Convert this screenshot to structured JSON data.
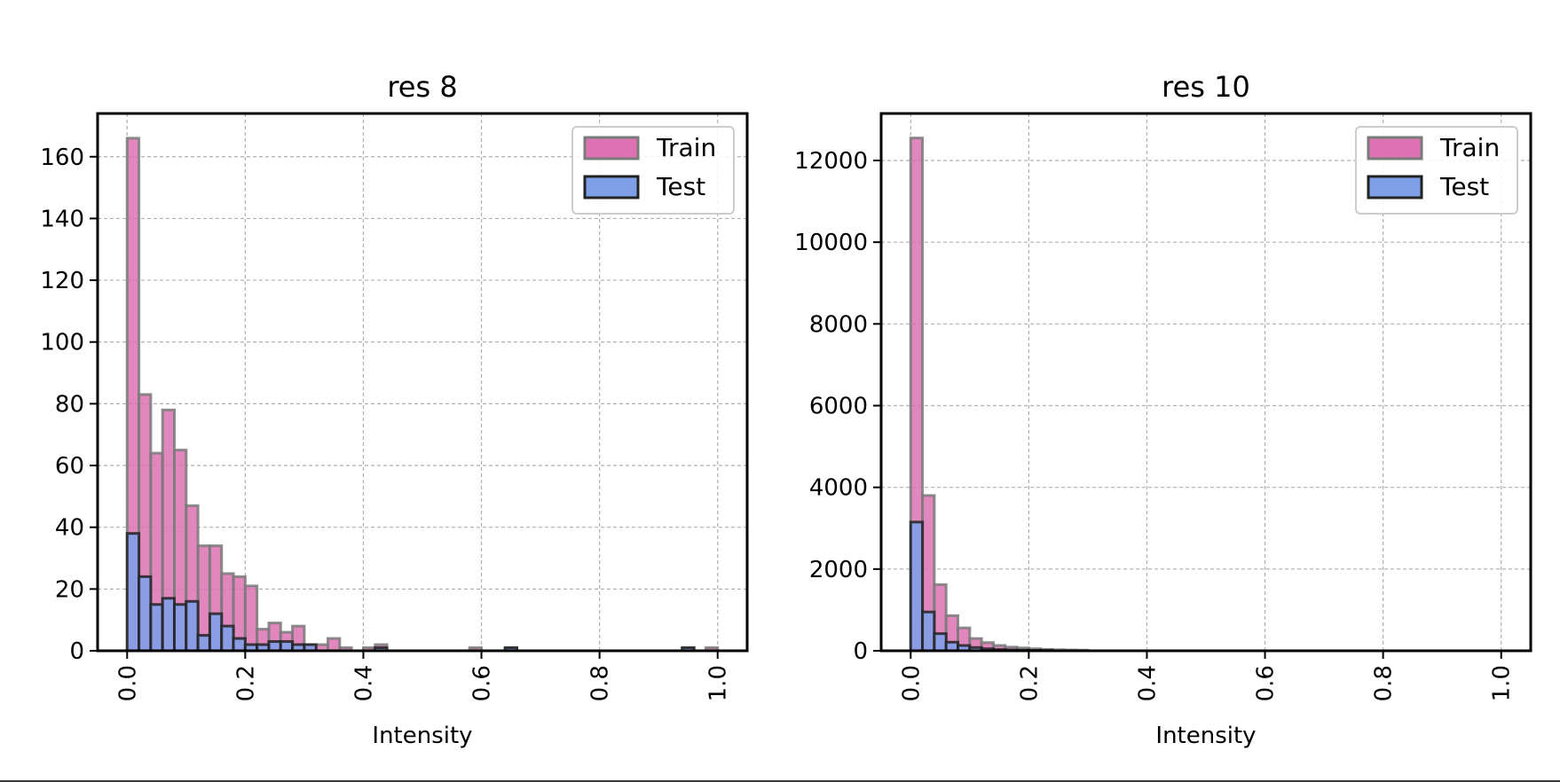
{
  "chart_data": [
    {
      "type": "bar",
      "title": "res 8",
      "xlabel": "Intensity",
      "ylabel": "",
      "xlim": [
        -0.05,
        1.05
      ],
      "ylim": [
        0,
        174
      ],
      "xticks": [
        0.0,
        0.2,
        0.4,
        0.6,
        0.8,
        1.0
      ],
      "xtick_labels": [
        "0.0",
        "0.2",
        "0.4",
        "0.6",
        "0.8",
        "1.0"
      ],
      "yticks": [
        0,
        20,
        40,
        60,
        80,
        100,
        120,
        140,
        160
      ],
      "ytick_labels": [
        "0",
        "20",
        "40",
        "60",
        "80",
        "100",
        "120",
        "140",
        "160"
      ],
      "grid": true,
      "legend": "top-right",
      "bin_width": 0.02,
      "series": [
        {
          "name": "Train",
          "color": "#dd71b3",
          "edge": "#7a7a7a",
          "bins": [
            [
              0.0,
              166
            ],
            [
              0.02,
              83
            ],
            [
              0.04,
              64
            ],
            [
              0.06,
              78
            ],
            [
              0.08,
              65
            ],
            [
              0.1,
              47
            ],
            [
              0.12,
              34
            ],
            [
              0.14,
              34
            ],
            [
              0.16,
              25
            ],
            [
              0.18,
              24
            ],
            [
              0.2,
              21
            ],
            [
              0.22,
              7
            ],
            [
              0.24,
              9
            ],
            [
              0.26,
              6
            ],
            [
              0.28,
              8
            ],
            [
              0.3,
              2
            ],
            [
              0.32,
              2
            ],
            [
              0.34,
              4
            ],
            [
              0.36,
              1
            ],
            [
              0.4,
              1
            ],
            [
              0.42,
              2
            ],
            [
              0.58,
              1
            ],
            [
              0.64,
              1
            ],
            [
              0.94,
              1
            ],
            [
              0.98,
              1
            ]
          ]
        },
        {
          "name": "Test",
          "color": "#7f9ee8",
          "edge": "#222222",
          "bins": [
            [
              0.0,
              38
            ],
            [
              0.02,
              24
            ],
            [
              0.04,
              15
            ],
            [
              0.06,
              17
            ],
            [
              0.08,
              15
            ],
            [
              0.1,
              16
            ],
            [
              0.12,
              5
            ],
            [
              0.14,
              12
            ],
            [
              0.16,
              8
            ],
            [
              0.18,
              4
            ],
            [
              0.2,
              2
            ],
            [
              0.22,
              2
            ],
            [
              0.24,
              3
            ],
            [
              0.26,
              3
            ],
            [
              0.28,
              2
            ],
            [
              0.3,
              2
            ],
            [
              0.42,
              1
            ],
            [
              0.64,
              1
            ],
            [
              0.94,
              1
            ]
          ]
        }
      ]
    },
    {
      "type": "bar",
      "title": "res 10",
      "xlabel": "Intensity",
      "ylabel": "",
      "xlim": [
        -0.05,
        1.05
      ],
      "ylim": [
        0,
        13150
      ],
      "xticks": [
        0.0,
        0.2,
        0.4,
        0.6,
        0.8,
        1.0
      ],
      "xtick_labels": [
        "0.0",
        "0.2",
        "0.4",
        "0.6",
        "0.8",
        "1.0"
      ],
      "yticks": [
        0,
        2000,
        4000,
        6000,
        8000,
        10000,
        12000
      ],
      "ytick_labels": [
        "0",
        "2000",
        "4000",
        "6000",
        "8000",
        "10000",
        "12000"
      ],
      "grid": true,
      "legend": "top-right",
      "bin_width": 0.02,
      "series": [
        {
          "name": "Train",
          "color": "#dd71b3",
          "edge": "#7a7a7a",
          "bins": [
            [
              0.0,
              12550
            ],
            [
              0.02,
              3800
            ],
            [
              0.04,
              1620
            ],
            [
              0.06,
              860
            ],
            [
              0.08,
              560
            ],
            [
              0.1,
              300
            ],
            [
              0.12,
              200
            ],
            [
              0.14,
              130
            ],
            [
              0.16,
              90
            ],
            [
              0.18,
              70
            ],
            [
              0.2,
              50
            ],
            [
              0.22,
              35
            ],
            [
              0.24,
              25
            ],
            [
              0.26,
              20
            ],
            [
              0.28,
              15
            ]
          ]
        },
        {
          "name": "Test",
          "color": "#7f9ee8",
          "edge": "#222222",
          "bins": [
            [
              0.0,
              3150
            ],
            [
              0.02,
              950
            ],
            [
              0.04,
              420
            ],
            [
              0.06,
              210
            ],
            [
              0.08,
              130
            ],
            [
              0.1,
              80
            ],
            [
              0.12,
              50
            ],
            [
              0.14,
              30
            ],
            [
              0.16,
              20
            ],
            [
              0.18,
              15
            ],
            [
              0.2,
              10
            ],
            [
              0.22,
              8
            ]
          ]
        }
      ]
    }
  ]
}
